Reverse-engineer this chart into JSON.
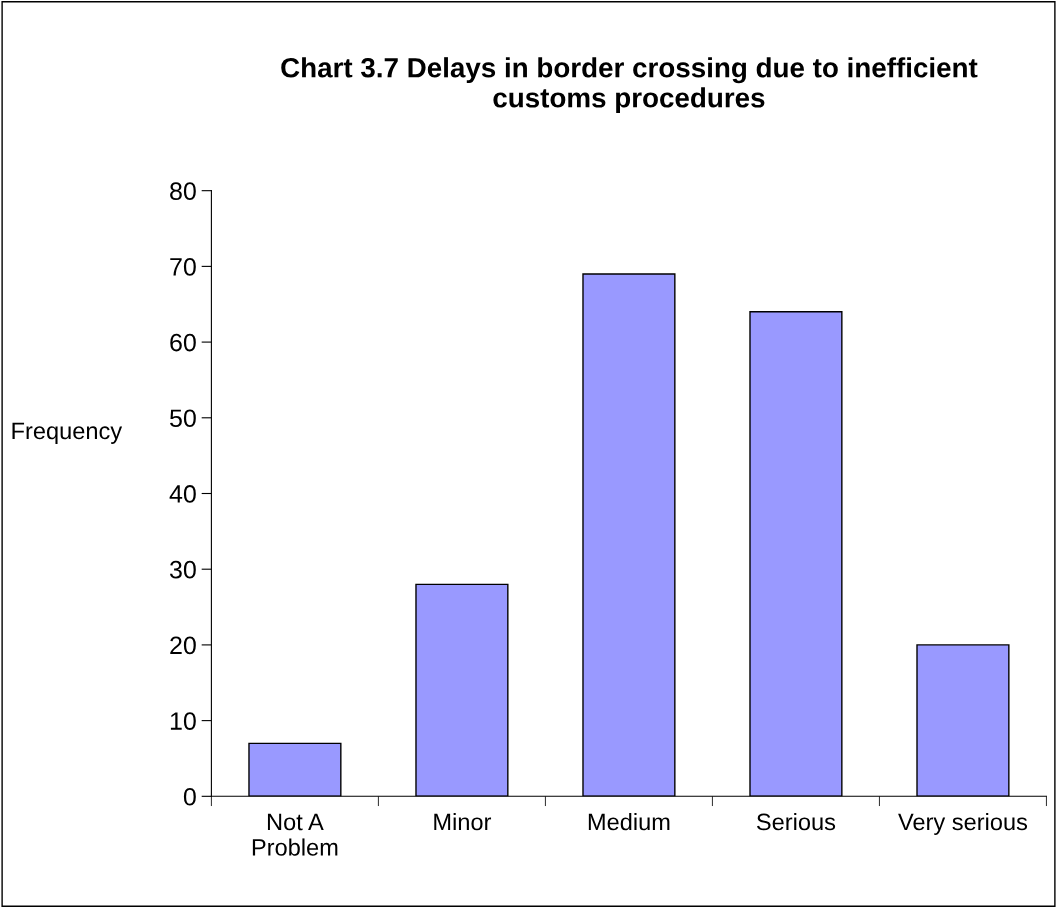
{
  "chart_data": {
    "type": "bar",
    "title": "Chart 3.7 Delays in border crossing due to inefficient\ncustoms procedures",
    "ylabel": "Frequency",
    "categories": [
      "Not A\nProblem",
      "Minor",
      "Medium",
      "Serious",
      "Very serious"
    ],
    "values": [
      7,
      28,
      69,
      64,
      20
    ],
    "color": "#9999ff",
    "ylim": [
      0,
      80
    ],
    "yticks": [
      0,
      10,
      20,
      30,
      40,
      50,
      60,
      70,
      80
    ],
    "grid": false,
    "legend": false
  }
}
